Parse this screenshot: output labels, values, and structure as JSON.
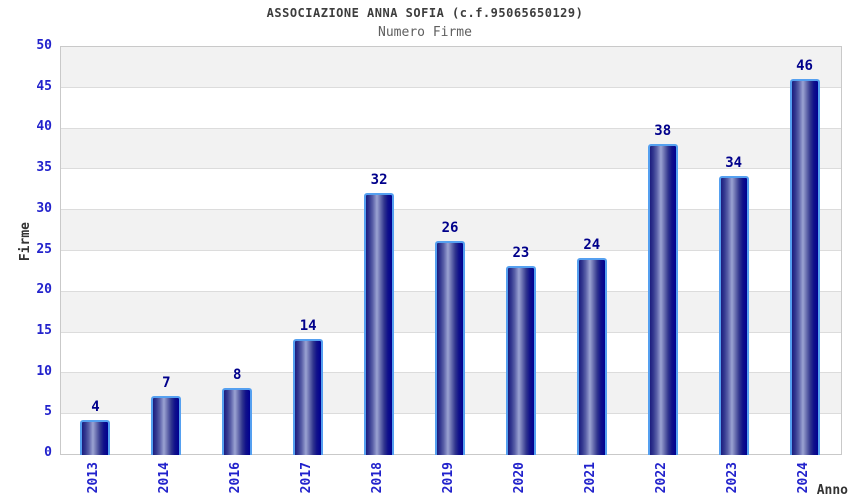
{
  "header": {
    "title": "ASSOCIAZIONE ANNA SOFIA (c.f.95065650129)",
    "subtitle": "Numero Firme"
  },
  "chart_data": {
    "type": "bar",
    "title": "ASSOCIAZIONE ANNA SOFIA (c.f.95065650129)",
    "subtitle": "Numero Firme",
    "categories": [
      "2013",
      "2014",
      "2016",
      "2017",
      "2018",
      "2019",
      "2020",
      "2021",
      "2022",
      "2023",
      "2024"
    ],
    "values": [
      4,
      7,
      8,
      14,
      32,
      26,
      23,
      24,
      38,
      34,
      46
    ],
    "xlabel": "Anno",
    "ylabel": "Firme",
    "ylim": [
      0,
      50
    ],
    "ytick_step": 5,
    "grid": "horizontal-bands-alternating",
    "legend": "none"
  },
  "colors": {
    "tick_label": "#2222cc",
    "value_label": "#00008b",
    "title_text": "#3d3d3d",
    "subtitle_text": "#5f5f5f",
    "axis_title_text": "#333333",
    "band_gray": "#f2f2f2",
    "band_white": "#ffffff",
    "grid_line": "#dcdcdc",
    "plot_border": "#c9c9c9",
    "bar_border": "#55a0f0",
    "bar_dark": "#000090",
    "bar_light": "#9ba3d2"
  }
}
